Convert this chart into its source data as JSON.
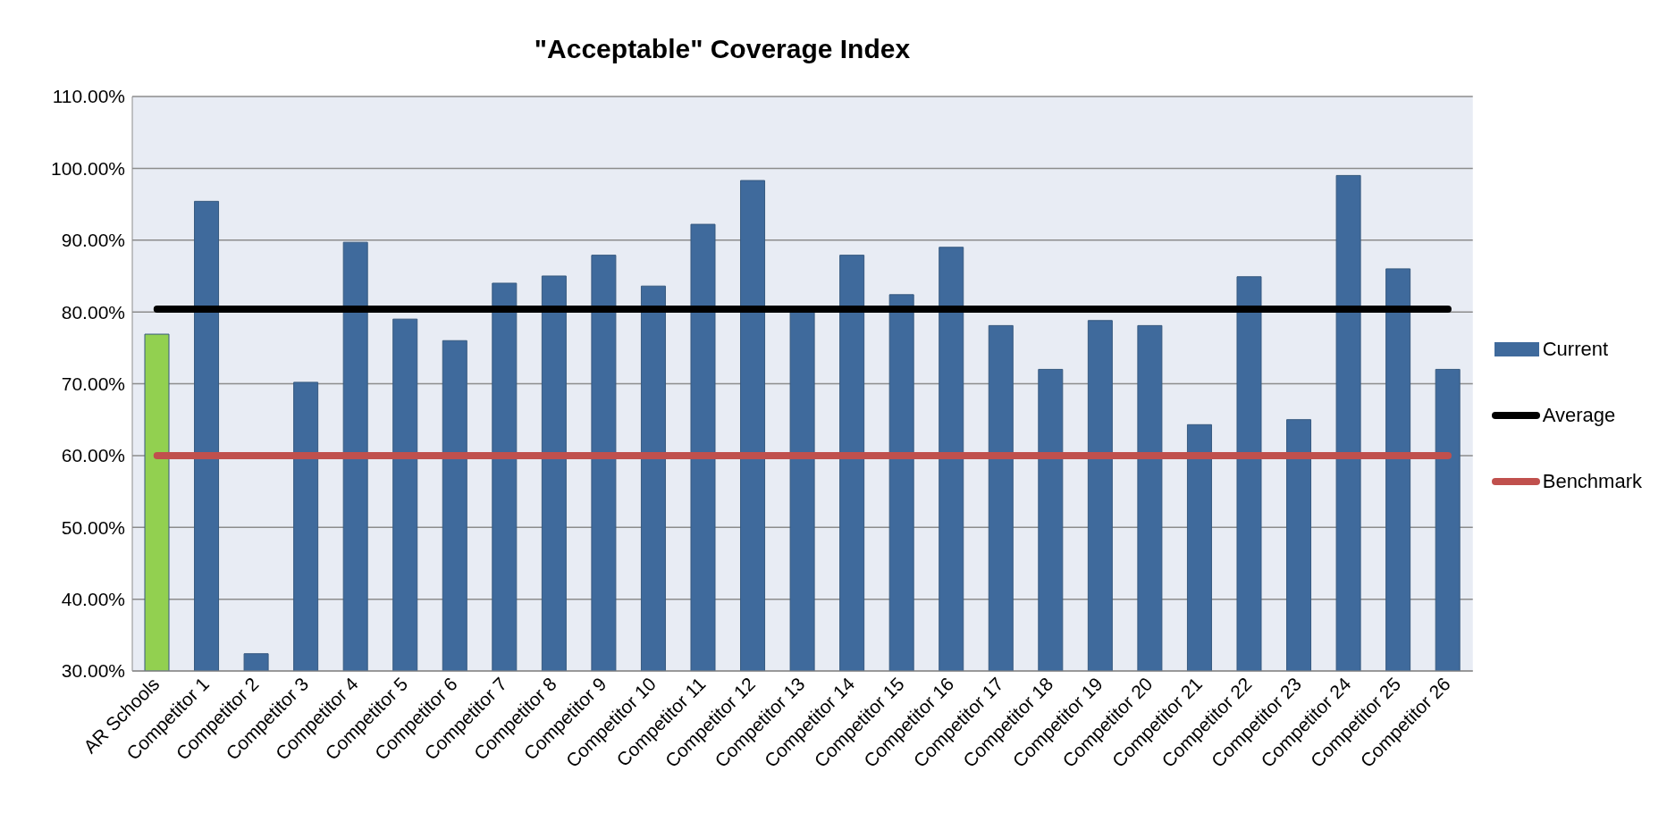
{
  "chart_data": {
    "type": "bar",
    "title": "\"Acceptable\" Coverage Index",
    "categories": [
      "AR Schools",
      "Competitor 1",
      "Competitor 2",
      "Competitor 3",
      "Competitor 4",
      "Competitor 5",
      "Competitor 6",
      "Competitor 7",
      "Competitor 8",
      "Competitor 9",
      "Competitor 10",
      "Competitor 11",
      "Competitor 12",
      "Competitor 13",
      "Competitor 14",
      "Competitor 15",
      "Competitor 16",
      "Competitor 17",
      "Competitor 18",
      "Competitor 19",
      "Competitor 20",
      "Competitor 21",
      "Competitor 22",
      "Competitor 23",
      "Competitor 24",
      "Competitor 25",
      "Competitor 26"
    ],
    "series": [
      {
        "name": "Current",
        "color": "#3f6a9c",
        "colors": [
          "#92d050",
          "#3f6a9c",
          "#3f6a9c",
          "#3f6a9c",
          "#3f6a9c",
          "#3f6a9c",
          "#3f6a9c",
          "#3f6a9c",
          "#3f6a9c",
          "#3f6a9c",
          "#3f6a9c",
          "#3f6a9c",
          "#3f6a9c",
          "#3f6a9c",
          "#3f6a9c",
          "#3f6a9c",
          "#3f6a9c",
          "#3f6a9c",
          "#3f6a9c",
          "#3f6a9c",
          "#3f6a9c",
          "#3f6a9c",
          "#3f6a9c",
          "#3f6a9c",
          "#3f6a9c",
          "#3f6a9c",
          "#3f6a9c"
        ],
        "values": [
          76.9,
          95.4,
          32.4,
          70.2,
          89.7,
          79.0,
          76.0,
          84.0,
          85.0,
          87.9,
          83.6,
          92.2,
          98.3,
          80.0,
          87.9,
          82.4,
          89.0,
          78.1,
          72.0,
          78.8,
          78.1,
          64.3,
          84.9,
          65.0,
          99.0,
          86.0,
          72.0
        ]
      },
      {
        "name": "Average",
        "type": "line",
        "color": "#000000",
        "values": [
          80.4,
          80.4,
          80.4,
          80.4,
          80.4,
          80.4,
          80.4,
          80.4,
          80.4,
          80.4,
          80.4,
          80.4,
          80.4,
          80.4,
          80.4,
          80.4,
          80.4,
          80.4,
          80.4,
          80.4,
          80.4,
          80.4,
          80.4,
          80.4,
          80.4,
          80.4,
          80.4
        ]
      },
      {
        "name": "Benchmark",
        "type": "line",
        "color": "#c0504d",
        "values": [
          60,
          60,
          60,
          60,
          60,
          60,
          60,
          60,
          60,
          60,
          60,
          60,
          60,
          60,
          60,
          60,
          60,
          60,
          60,
          60,
          60,
          60,
          60,
          60,
          60,
          60,
          60
        ]
      }
    ],
    "ylim": [
      30,
      110
    ],
    "yticks": [
      {
        "value": 30,
        "label": "30.00%"
      },
      {
        "value": 40,
        "label": "40.00%"
      },
      {
        "value": 50,
        "label": "50.00%"
      },
      {
        "value": 60,
        "label": "60.00%"
      },
      {
        "value": 70,
        "label": "70.00%"
      },
      {
        "value": 80,
        "label": "80.00%"
      },
      {
        "value": 90,
        "label": "90.00%"
      },
      {
        "value": 100,
        "label": "100.00%"
      },
      {
        "value": 110,
        "label": "110.00%"
      }
    ],
    "grid": "y",
    "legend": "right",
    "marker": "none"
  }
}
